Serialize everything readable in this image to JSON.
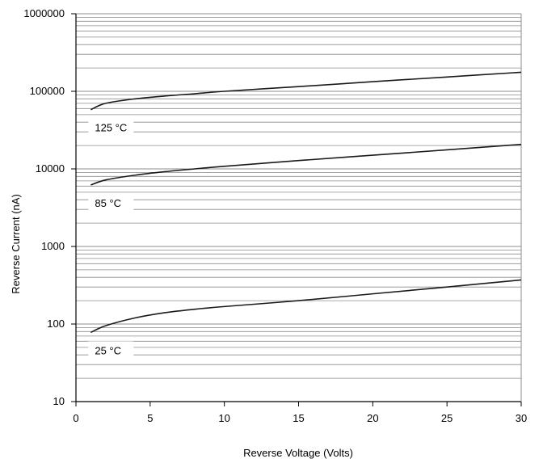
{
  "chart_data": {
    "type": "line",
    "title": "",
    "xlabel": "Reverse Voltage (Volts)",
    "ylabel": "Reverse Current (nA)",
    "xlim": [
      0,
      30
    ],
    "ylim": [
      10,
      1000000
    ],
    "yscale": "log",
    "grid": true,
    "x_ticks": [
      0,
      5,
      10,
      15,
      20,
      25,
      30
    ],
    "x_tick_labels": [
      "0",
      "5",
      "10",
      "15",
      "20",
      "25",
      "30"
    ],
    "y_ticks": [
      10,
      100,
      1000,
      10000,
      100000,
      1000000
    ],
    "y_tick_labels": [
      "10",
      "100",
      "1000",
      "10000",
      "100000",
      "1000000"
    ],
    "series": [
      {
        "name": "125 °C",
        "x": [
          1,
          2,
          4,
          6,
          8,
          10,
          15,
          20,
          25,
          30
        ],
        "y": [
          58000,
          70000,
          80000,
          87000,
          93000,
          100000,
          115000,
          133000,
          153000,
          176000
        ]
      },
      {
        "name": "85 °C",
        "x": [
          1,
          2,
          4,
          6,
          8,
          10,
          15,
          20,
          25,
          30
        ],
        "y": [
          6200,
          7200,
          8300,
          9200,
          10000,
          10800,
          12800,
          15000,
          17600,
          20700
        ]
      },
      {
        "name": "25 °C",
        "x": [
          1,
          2,
          4,
          6,
          8,
          10,
          15,
          20,
          25,
          30
        ],
        "y": [
          78,
          95,
          120,
          140,
          155,
          168,
          200,
          245,
          300,
          370
        ]
      }
    ],
    "colors": {
      "line": "#1a1a1a",
      "grid": "#8c8c8c",
      "frame": "#000000",
      "label_bg": "#ffffff"
    }
  }
}
